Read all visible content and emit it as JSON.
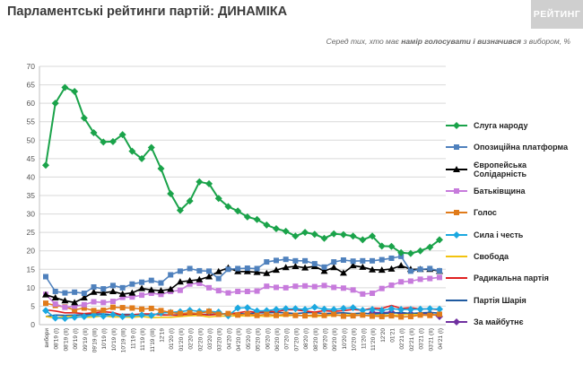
{
  "header": {
    "title": "Парламентські рейтинги партій: ДИНАМІКА",
    "logo_text": "РЕЙТИНГ",
    "subtitle_prefix": "Серед тих, хто має ",
    "subtitle_bold": "намір голосувати і визначився",
    "subtitle_suffix": " з вибором, %"
  },
  "chart_data": {
    "type": "line",
    "title": "Парламентські рейтинги партій: ДИНАМІКА",
    "subtitle": "Серед тих, хто має намір голосувати і визначився з вибором, %",
    "ylim": [
      0,
      70
    ],
    "ytick_step": 5,
    "grid": true,
    "legend_position": "right",
    "categories": [
      "вибори",
      "08'19 (I)",
      "08'19 (II)",
      "09'19 (I)",
      "09'19 (II)",
      "09'19 (III)",
      "10'19 (I)",
      "10'19 (II)",
      "10'19 (III)",
      "11'19 (I)",
      "11'19 (II)",
      "11'19 (III)",
      "12'19",
      "01'20 (I)",
      "01'20 (II)",
      "02'20 (I)",
      "02'20 (II)",
      "03'20 (I)",
      "03'20 (II)",
      "04'20 (I)",
      "04'20 (II)",
      "05'20 (I)",
      "05'20 (II)",
      "06'20 (I)",
      "06'20 (II)",
      "07'20 (I)",
      "07'20 (II)",
      "08'20 (I)",
      "08'20 (II)",
      "09'20 (I)",
      "09'20 (II)",
      "10'20 (I)",
      "10'20 (II)",
      "11'20 (I)",
      "11'20 (II)",
      "12'20",
      "01'21",
      "02'21 (I)",
      "02'21 (II)",
      "03'21 (I)",
      "03'21 (II)",
      "04'21 (I)"
    ],
    "series": [
      {
        "name": "Слуга народу",
        "color": "#1aa34a",
        "marker": "diamond",
        "values": [
          43.2,
          60,
          64.3,
          63.2,
          56,
          52,
          49.5,
          49.6,
          51.5,
          47,
          45,
          48,
          42.3,
          35.5,
          31,
          33.5,
          38.7,
          38.2,
          34.2,
          32,
          30.8,
          29.2,
          28.5,
          27,
          26,
          25.3,
          24,
          25,
          24.5,
          23.4,
          24.6,
          24.4,
          24,
          23,
          24,
          21.3,
          21.2,
          19.5,
          19.3,
          20,
          21,
          23
        ]
      },
      {
        "name": "Опозиційна платформа",
        "color": "#4f81bd",
        "marker": "square",
        "values": [
          13,
          9,
          8.6,
          8.8,
          8.5,
          10.2,
          9.7,
          10.6,
          10,
          11,
          11.5,
          12,
          11.3,
          13.5,
          14.5,
          15.2,
          14.6,
          14.5,
          12.5,
          15,
          15.2,
          15.3,
          15.2,
          17,
          17.4,
          17.7,
          17.3,
          17.3,
          16.5,
          15.6,
          17,
          17.5,
          17.2,
          17.3,
          17.3,
          17.6,
          18,
          18.5,
          14.5,
          15,
          15.2,
          14.6
        ]
      },
      {
        "name": "Європейська Солідарність",
        "color": "#000000",
        "marker": "triangle",
        "values": [
          8.1,
          7.3,
          6.5,
          6,
          7.3,
          8.8,
          8.6,
          9,
          8.3,
          8.6,
          9.8,
          9.4,
          9.2,
          9.6,
          11.6,
          11.9,
          12.2,
          13,
          14.4,
          15.4,
          14.4,
          14.4,
          14.2,
          13.9,
          14.8,
          15.5,
          15.8,
          15.4,
          15.8,
          14.5,
          15.5,
          14,
          16,
          15.6,
          14.9,
          14.8,
          15.1,
          16,
          15,
          15,
          15,
          14.5
        ]
      },
      {
        "name": "Батьківщина",
        "color": "#c77bdc",
        "marker": "square",
        "values": [
          8.2,
          5.6,
          4.7,
          5,
          5.4,
          6.2,
          6,
          6.3,
          7.4,
          7.5,
          8,
          8.5,
          8.2,
          9,
          9.3,
          11,
          11.2,
          10,
          9.2,
          8.6,
          9,
          9,
          9.1,
          10.4,
          10.1,
          10,
          10.4,
          10.5,
          10.3,
          10.6,
          10.1,
          9.9,
          9.4,
          8.3,
          8.5,
          9.8,
          10.7,
          11.6,
          11.8,
          12.3,
          12.5,
          12.8
        ]
      },
      {
        "name": "Голос",
        "color": "#e07b1a",
        "marker": "square",
        "values": [
          5.8,
          5.2,
          4.8,
          4,
          4.5,
          3.8,
          3.9,
          4.7,
          4.6,
          4.5,
          4.2,
          4.4,
          3.8,
          3.3,
          3,
          3.2,
          3,
          3.6,
          2.8,
          3,
          2.6,
          2.9,
          2.5,
          2.8,
          2.5,
          2.8,
          2.5,
          2.4,
          2.6,
          2.5,
          2.8,
          2.3,
          2.4,
          2.6,
          2.3,
          2.2,
          2.4,
          2.1,
          2.2,
          2.6,
          2.5,
          2.8
        ]
      },
      {
        "name": "Сила і честь",
        "color": "#1ba8e0",
        "marker": "diamond",
        "values": [
          3.8,
          1.8,
          1.7,
          2,
          2.2,
          2.6,
          2.3,
          2.7,
          2.2,
          2.4,
          2.6,
          2.5,
          3.2,
          3.3,
          3.5,
          3.9,
          3.6,
          3.6,
          3.4,
          2.4,
          4.5,
          4.6,
          3.7,
          3.8,
          4.1,
          4.3,
          4.3,
          4.1,
          4.7,
          4.2,
          4.1,
          4.4,
          4.6,
          3.9,
          4.1,
          3.9,
          4.3,
          4.1,
          4.1,
          4.2,
          4.3,
          4.2
        ]
      },
      {
        "name": "Свобода",
        "color": "#f2c30f",
        "marker": "none",
        "values": [
          2.2,
          1.8,
          2.2,
          2.3,
          2,
          2.1,
          2.4,
          2.1,
          2.1,
          2,
          2.2,
          1.9,
          2,
          2,
          2.2,
          2.4,
          2.5,
          2.1,
          2.3,
          2.3,
          2.4,
          2.3,
          2.4,
          2.2,
          2.4,
          2.3,
          2.6,
          2.4,
          2.2,
          2.4,
          2.5,
          2.6,
          2.7,
          2.5,
          2.4,
          2.6,
          2.5,
          2.7,
          2.8,
          2.7,
          2.6,
          2.8
        ]
      },
      {
        "name": "Радикальна партія",
        "color": "#e02020",
        "marker": "none",
        "values": [
          4,
          3.7,
          3.2,
          3.2,
          3,
          3.2,
          3.5,
          3.3,
          2.5,
          2.7,
          2.9,
          2.9,
          2.6,
          2.6,
          2.5,
          3,
          2.8,
          2.6,
          2.8,
          2.9,
          3.2,
          3.6,
          3.3,
          3.6,
          3.5,
          4,
          4,
          3.7,
          3.4,
          3.8,
          3.6,
          3.8,
          4.1,
          3.9,
          4.5,
          4.4,
          5.2,
          4.4,
          4.6,
          4.2,
          4.3,
          4
        ]
      },
      {
        "name": "Партія Шарія",
        "color": "#1f5aa0",
        "marker": "none",
        "values": [
          2.2,
          2.6,
          2.5,
          2.6,
          2.7,
          2.9,
          2.9,
          2.7,
          2.8,
          2.8,
          2.5,
          2.8,
          2.7,
          2.6,
          2.7,
          2.8,
          2.6,
          2.9,
          2.7,
          3.1,
          3,
          2.9,
          3.2,
          3.2,
          3.3,
          3.2,
          3,
          3.2,
          3.3,
          3,
          3.1,
          3.2,
          3,
          3.1,
          2.9,
          3,
          3.1,
          3.3,
          3,
          3.2,
          3.3,
          3.1
        ]
      },
      {
        "name": "За майбутнє",
        "color": "#7030a0",
        "marker": "diamond",
        "values": [
          null,
          null,
          null,
          null,
          null,
          null,
          null,
          null,
          null,
          null,
          null,
          null,
          null,
          null,
          null,
          null,
          null,
          null,
          null,
          null,
          null,
          null,
          null,
          null,
          null,
          null,
          null,
          null,
          null,
          null,
          null,
          null,
          null,
          null,
          3.3,
          3.2,
          3.4,
          3,
          3,
          2.9,
          3,
          2.2
        ]
      }
    ]
  }
}
